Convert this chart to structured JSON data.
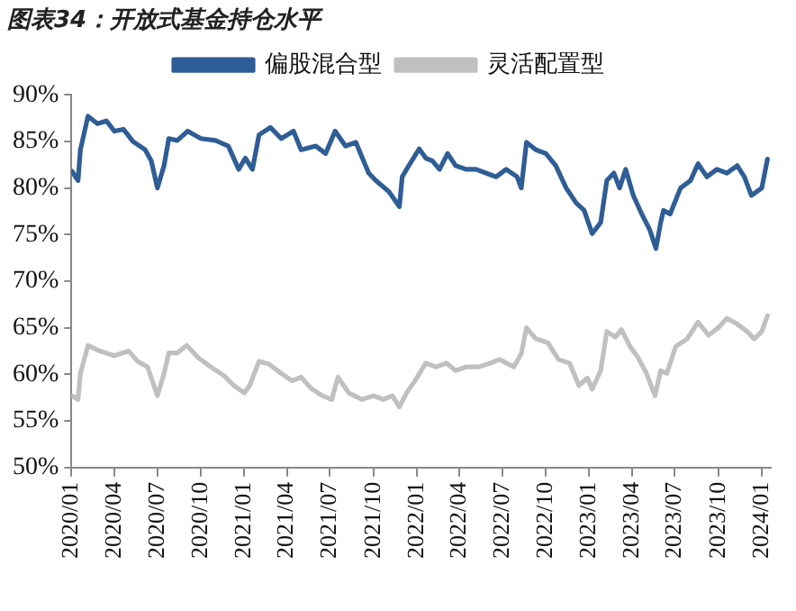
{
  "chart_data": {
    "type": "line",
    "title": "图表34：开放式基金持仓水平",
    "legend": "top",
    "xlim": [
      "2020-01-01",
      "2024-01-20"
    ],
    "xticks": [
      {
        "value": "2020-01-01",
        "label": "2020/01"
      },
      {
        "value": "2020-04-01",
        "label": "2020/04"
      },
      {
        "value": "2020-07-01",
        "label": "2020/07"
      },
      {
        "value": "2020-10-01",
        "label": "2020/10"
      },
      {
        "value": "2021-01-01",
        "label": "2021/01"
      },
      {
        "value": "2021-04-01",
        "label": "2021/04"
      },
      {
        "value": "2021-07-01",
        "label": "2021/07"
      },
      {
        "value": "2021-10-01",
        "label": "2021/10"
      },
      {
        "value": "2022-01-01",
        "label": "2022/01"
      },
      {
        "value": "2022-04-01",
        "label": "2022/04"
      },
      {
        "value": "2022-07-01",
        "label": "2022/07"
      },
      {
        "value": "2022-10-01",
        "label": "2022/10"
      },
      {
        "value": "2023-01-01",
        "label": "2023/01"
      },
      {
        "value": "2023-04-01",
        "label": "2023/04"
      },
      {
        "value": "2023-07-01",
        "label": "2023/07"
      },
      {
        "value": "2023-10-01",
        "label": "2023/10"
      },
      {
        "value": "2024-01-01",
        "label": "2024/01"
      }
    ],
    "ylim": [
      50,
      90
    ],
    "yticks": [
      {
        "value": 50,
        "label": "50%"
      },
      {
        "value": 55,
        "label": "55%"
      },
      {
        "value": 60,
        "label": "60%"
      },
      {
        "value": 65,
        "label": "65%"
      },
      {
        "value": 70,
        "label": "70%"
      },
      {
        "value": 75,
        "label": "75%"
      },
      {
        "value": 80,
        "label": "80%"
      },
      {
        "value": 85,
        "label": "85%"
      },
      {
        "value": 90,
        "label": "90%"
      }
    ],
    "series": [
      {
        "name": "偏股混合型",
        "color": "#2f5d95",
        "x": [
          "2020-01-02",
          "2020-01-15",
          "2020-01-20",
          "2020-02-05",
          "2020-02-25",
          "2020-03-15",
          "2020-04-01",
          "2020-04-20",
          "2020-05-10",
          "2020-06-05",
          "2020-06-18",
          "2020-07-01",
          "2020-07-15",
          "2020-07-25",
          "2020-08-12",
          "2020-09-03",
          "2020-10-01",
          "2020-11-01",
          "2020-11-28",
          "2020-12-20",
          "2021-01-03",
          "2021-01-18",
          "2021-02-01",
          "2021-02-25",
          "2021-03-20",
          "2021-04-15",
          "2021-05-01",
          "2021-06-01",
          "2021-06-22",
          "2021-07-12",
          "2021-08-03",
          "2021-08-25",
          "2021-09-07",
          "2021-09-21",
          "2021-10-06",
          "2021-11-03",
          "2021-11-25",
          "2021-12-01",
          "2021-12-15",
          "2022-01-06",
          "2022-01-20",
          "2022-02-03",
          "2022-02-18",
          "2022-03-07",
          "2022-03-24",
          "2022-04-15",
          "2022-05-06",
          "2022-05-27",
          "2022-06-18",
          "2022-07-09",
          "2022-08-01",
          "2022-08-10",
          "2022-08-21",
          "2022-09-10",
          "2022-10-01",
          "2022-10-22",
          "2022-11-13",
          "2022-12-04",
          "2022-12-21",
          "2023-01-07",
          "2023-01-25",
          "2023-02-07",
          "2023-02-22",
          "2023-03-06",
          "2023-03-19",
          "2023-04-04",
          "2023-04-22",
          "2023-05-09",
          "2023-05-22",
          "2023-06-01",
          "2023-06-07",
          "2023-06-21",
          "2023-07-13",
          "2023-08-03",
          "2023-08-19",
          "2023-09-07",
          "2023-09-28",
          "2023-10-19",
          "2023-11-10",
          "2023-11-25",
          "2023-12-10",
          "2024-01-01",
          "2024-01-13"
        ],
        "values": [
          81.8,
          80.8,
          84.1,
          87.7,
          86.9,
          87.2,
          86.1,
          86.3,
          85.0,
          84.1,
          82.9,
          80.0,
          82.4,
          85.3,
          85.1,
          86.1,
          85.3,
          85.1,
          84.5,
          82.0,
          83.2,
          82.0,
          85.7,
          86.5,
          85.3,
          86.1,
          84.1,
          84.5,
          83.7,
          86.1,
          84.5,
          84.9,
          83.3,
          81.6,
          80.8,
          79.6,
          78.0,
          81.2,
          82.4,
          84.2,
          83.2,
          82.9,
          82.0,
          83.7,
          82.4,
          82.0,
          82.0,
          81.6,
          81.2,
          82.0,
          81.2,
          80.0,
          84.9,
          84.1,
          83.7,
          82.4,
          80.0,
          78.4,
          77.6,
          75.1,
          76.3,
          80.8,
          81.6,
          80.0,
          82.0,
          79.2,
          77.2,
          75.5,
          73.5,
          76.3,
          77.6,
          77.2,
          80.0,
          80.8,
          82.6,
          81.2,
          82.0,
          81.6,
          82.4,
          81.2,
          79.2,
          80.0,
          83.1
        ]
      },
      {
        "name": "灵活配置型",
        "color": "#c0c0c0",
        "x": [
          "2020-01-02",
          "2020-01-15",
          "2020-01-20",
          "2020-02-05",
          "2020-03-01",
          "2020-04-01",
          "2020-05-01",
          "2020-05-20",
          "2020-06-10",
          "2020-07-01",
          "2020-07-15",
          "2020-07-25",
          "2020-08-12",
          "2020-09-01",
          "2020-09-25",
          "2020-10-22",
          "2020-11-20",
          "2020-12-10",
          "2021-01-01",
          "2021-01-12",
          "2021-02-01",
          "2021-02-22",
          "2021-03-20",
          "2021-04-12",
          "2021-05-01",
          "2021-05-22",
          "2021-06-15",
          "2021-07-05",
          "2021-07-18",
          "2021-08-10",
          "2021-09-07",
          "2021-10-01",
          "2021-10-22",
          "2021-11-10",
          "2021-11-25",
          "2021-12-10",
          "2021-12-28",
          "2022-01-20",
          "2022-02-10",
          "2022-03-05",
          "2022-03-24",
          "2022-04-15",
          "2022-05-12",
          "2022-06-05",
          "2022-06-25",
          "2022-07-25",
          "2022-08-10",
          "2022-08-21",
          "2022-09-10",
          "2022-10-05",
          "2022-10-28",
          "2022-11-20",
          "2022-12-10",
          "2022-12-28",
          "2023-01-07",
          "2023-01-25",
          "2023-02-07",
          "2023-02-25",
          "2023-03-10",
          "2023-03-28",
          "2023-04-14",
          "2023-05-02",
          "2023-05-20",
          "2023-06-01",
          "2023-06-14",
          "2023-07-03",
          "2023-07-27",
          "2023-08-19",
          "2023-09-10",
          "2023-10-01",
          "2023-10-19",
          "2023-11-10",
          "2023-12-01",
          "2023-12-16",
          "2024-01-01",
          "2024-01-13"
        ],
        "values": [
          57.7,
          57.3,
          60.1,
          63.1,
          62.5,
          62.0,
          62.5,
          61.4,
          60.8,
          57.7,
          60.1,
          62.3,
          62.3,
          63.1,
          61.8,
          60.8,
          59.8,
          58.8,
          58.0,
          58.8,
          61.4,
          61.1,
          60.1,
          59.3,
          59.7,
          58.5,
          57.7,
          57.3,
          59.7,
          58.0,
          57.3,
          57.7,
          57.3,
          57.7,
          56.5,
          58.0,
          59.3,
          61.2,
          60.8,
          61.2,
          60.4,
          60.8,
          60.8,
          61.2,
          61.6,
          60.8,
          62.2,
          65.0,
          63.8,
          63.4,
          61.6,
          61.2,
          58.8,
          59.6,
          58.4,
          60.4,
          64.6,
          64.0,
          64.8,
          63.0,
          61.8,
          60.1,
          57.7,
          60.4,
          60.1,
          63.0,
          63.8,
          65.6,
          64.2,
          65.0,
          66.0,
          65.4,
          64.6,
          63.8,
          64.6,
          66.3
        ]
      }
    ]
  }
}
